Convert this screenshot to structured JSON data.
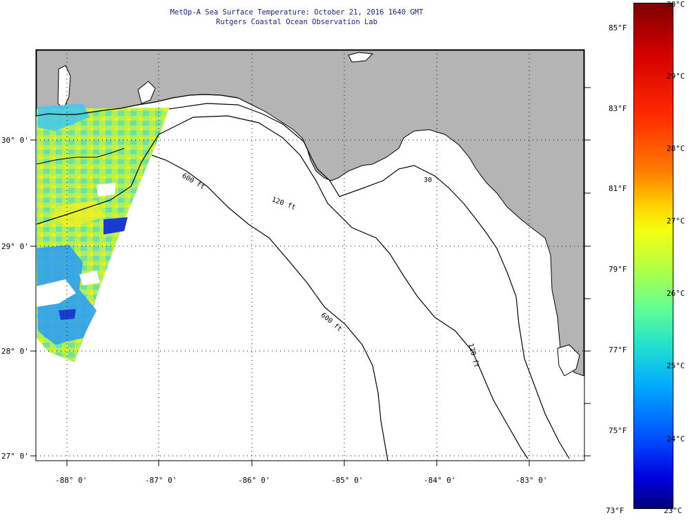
{
  "title": {
    "line1": "MetOp-A Sea Surface Temperature:  October 21, 2016 1640 GMT",
    "line2": "Rutgers Coastal Ocean Observation Lab"
  },
  "axes": {
    "longitude_labels": [
      "-88° 0'",
      "-87° 0'",
      "-86° 0'",
      "-85° 0'",
      "-84° 0'",
      "-83° 0'"
    ],
    "latitude_labels": [
      "30° 0'",
      "29° 0'",
      "28° 0'",
      "27° 0'"
    ]
  },
  "contours": {
    "shelf_30": "30",
    "shelf_120": "120 ft",
    "shelf_120_b": "120 ft",
    "shelf_600": "600 ft",
    "shelf_600_b": "600 ft"
  },
  "colorbar": {
    "fahrenheit": [
      "85°F",
      "83°F",
      "81°F",
      "79°F",
      "77°F",
      "75°F",
      "73°F"
    ],
    "celsius": [
      "30°C",
      "29°C",
      "28°C",
      "27°C",
      "26°C",
      "25°C",
      "24°C",
      "23°C"
    ]
  },
  "colors": {
    "land": "#b4b4b4",
    "ocean": "#ffffff",
    "title": "#1a237e"
  }
}
